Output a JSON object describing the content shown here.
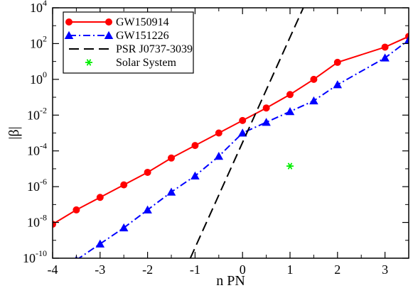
{
  "chart_data": {
    "type": "line",
    "title": "",
    "xlabel": "n PN",
    "ylabel": "|β|",
    "xlim": [
      -4,
      3.5
    ],
    "ylim_log10": [
      -10,
      4
    ],
    "yscale": "log",
    "grid": false,
    "legend_position": "top-left",
    "x_ticks": [
      {
        "value": -4,
        "label": "-4"
      },
      {
        "value": -3,
        "label": "-3"
      },
      {
        "value": -2,
        "label": "-2"
      },
      {
        "value": -1,
        "label": "-1"
      },
      {
        "value": 0,
        "label": "0"
      },
      {
        "value": 1,
        "label": "1"
      },
      {
        "value": 2,
        "label": "2"
      },
      {
        "value": 3,
        "label": "3"
      }
    ],
    "y_ticks": [
      {
        "log10": -10,
        "base": "10",
        "exp": "-10"
      },
      {
        "log10": -8,
        "base": "10",
        "exp": "-8"
      },
      {
        "log10": -6,
        "base": "10",
        "exp": "-6"
      },
      {
        "log10": -4,
        "base": "10",
        "exp": "-4"
      },
      {
        "log10": -2,
        "base": "10",
        "exp": "-2"
      },
      {
        "log10": 0,
        "base": "10",
        "exp": "0"
      },
      {
        "log10": 2,
        "base": "10",
        "exp": "2"
      },
      {
        "log10": 4,
        "base": "10",
        "exp": "4"
      }
    ],
    "series": [
      {
        "name": "GW150914",
        "color": "#ff0000",
        "line_style": "solid",
        "marker": "circle",
        "x": [
          -4,
          -3.5,
          -3,
          -2.5,
          -2,
          -1.5,
          -1,
          -0.5,
          0,
          0.5,
          1,
          1.5,
          2,
          3,
          3.5
        ],
        "log10_y": [
          -8.1,
          -7.3,
          -6.6,
          -5.9,
          -5.2,
          -4.4,
          -3.7,
          -3.0,
          -2.3,
          -1.6,
          -0.85,
          0,
          0.95,
          1.8,
          2.4
        ]
      },
      {
        "name": "GW151226",
        "color": "#0000ff",
        "line_style": "dash-dot",
        "marker": "triangle",
        "x": [
          -3.5,
          -3,
          -2.5,
          -2,
          -1.5,
          -1,
          -0.5,
          0,
          0.5,
          1,
          1.5,
          2,
          3,
          3.5
        ],
        "log10_y": [
          -10.1,
          -9.2,
          -8.3,
          -7.3,
          -6.3,
          -5.4,
          -4.3,
          -3.0,
          -2.4,
          -1.8,
          -1.2,
          -0.3,
          1.2,
          2.2
        ]
      },
      {
        "name": "PSR J0737-3039",
        "color": "#000000",
        "line_style": "dashed",
        "marker": "none",
        "x": [
          -1.1,
          1.28
        ],
        "log10_y": [
          -10,
          4
        ]
      },
      {
        "name": "Solar System",
        "color": "#00ee00",
        "line_style": "none",
        "marker": "asterisk",
        "x": [
          1
        ],
        "log10_y": [
          -4.85
        ]
      }
    ]
  }
}
